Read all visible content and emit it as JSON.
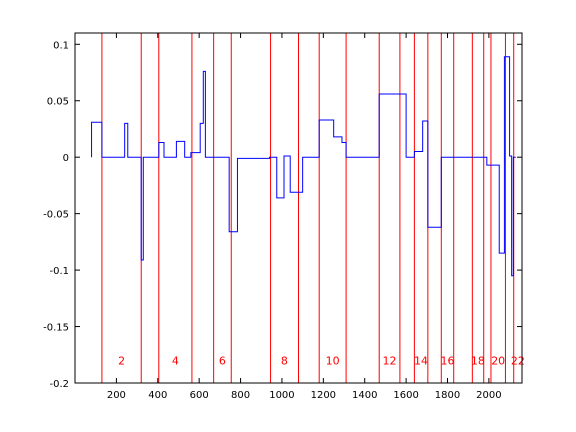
{
  "chart_data": {
    "type": "line",
    "title": "",
    "xlabel": "",
    "ylabel": "",
    "xlim": [
      0,
      2160
    ],
    "ylim": [
      -0.2,
      0.11
    ],
    "grid": false,
    "x_ticks": [
      200,
      400,
      600,
      800,
      1000,
      1200,
      1400,
      1600,
      1800,
      2000
    ],
    "x_tick_labels": [
      "200",
      "400",
      "600",
      "800",
      "1000",
      "1200",
      "1400",
      "1600",
      "1800",
      "2000"
    ],
    "y_ticks": [
      0.1,
      0.05,
      0,
      -0.05,
      -0.1,
      -0.15,
      -0.2
    ],
    "y_tick_labels": [
      "0.1",
      "0.05",
      "0",
      "-0.05",
      "-0.1",
      "-0.15",
      "-0.2"
    ],
    "series": [
      {
        "color": "#0000ff",
        "style": "step",
        "x": [
          80,
          80,
          130,
          130,
          240,
          240,
          255,
          255,
          320,
          320,
          330,
          330,
          405,
          405,
          430,
          430,
          490,
          490,
          530,
          530,
          560,
          560,
          565,
          565,
          605,
          605,
          620,
          620,
          630,
          630,
          650,
          650,
          745,
          745,
          785,
          785,
          940,
          940,
          975,
          975,
          1010,
          1010,
          1040,
          1040,
          1100,
          1100,
          1140,
          1140,
          1180,
          1180,
          1250,
          1250,
          1290,
          1290,
          1310,
          1310,
          1370,
          1370,
          1470,
          1470,
          1600,
          1600,
          1640,
          1640,
          1680,
          1680,
          1705,
          1705,
          1770,
          1770,
          1780,
          1780,
          1990,
          1990,
          2050,
          2050,
          2075,
          2075,
          2100,
          2100,
          2110,
          2110,
          2118,
          2118,
          2130
        ],
        "y": [
          0,
          0.031,
          0.031,
          0,
          0,
          0.03,
          0.03,
          0,
          0,
          -0.091,
          -0.091,
          0,
          0,
          0.013,
          0.013,
          0,
          0,
          0.014,
          0.014,
          0,
          0,
          0.004,
          0.004,
          0.004,
          0.004,
          0.03,
          0.03,
          0.076,
          0.076,
          0,
          0,
          0,
          0,
          -0.066,
          -0.066,
          -0.001,
          -0.001,
          0,
          0,
          -0.036,
          -0.036,
          0.001,
          0.001,
          -0.031,
          -0.031,
          0,
          0,
          0,
          0,
          0.033,
          0.033,
          0.018,
          0.018,
          0.013,
          0.013,
          0,
          0,
          0,
          0,
          0.056,
          0.056,
          0,
          0,
          0.005,
          0.005,
          0.032,
          0.032,
          -0.062,
          -0.062,
          0,
          0,
          0,
          0,
          -0.007,
          -0.007,
          -0.085,
          -0.085,
          0.089,
          0.089,
          0.001,
          0.001,
          -0.105,
          -0.105,
          0,
          0
        ]
      }
    ],
    "boundaries": {
      "color": "#ff0000",
      "x": [
        130,
        320,
        405,
        565,
        670,
        755,
        945,
        1080,
        1180,
        1310,
        1470,
        1570,
        1640,
        1705,
        1770,
        1830,
        1920,
        1975,
        2010,
        2080,
        2120
      ]
    },
    "segment_labels": {
      "color": "#ff0000",
      "y": -0.18,
      "items": [
        {
          "x": 225,
          "text": "2"
        },
        {
          "x": 485,
          "text": "4"
        },
        {
          "x": 712,
          "text": "6"
        },
        {
          "x": 1012,
          "text": "8"
        },
        {
          "x": 1245,
          "text": "10"
        },
        {
          "x": 1520,
          "text": "12"
        },
        {
          "x": 1672,
          "text": "14"
        },
        {
          "x": 1800,
          "text": "16"
        },
        {
          "x": 1947,
          "text": "18"
        },
        {
          "x": 2045,
          "text": "20"
        },
        {
          "x": 2140,
          "text": "22"
        }
      ]
    }
  }
}
